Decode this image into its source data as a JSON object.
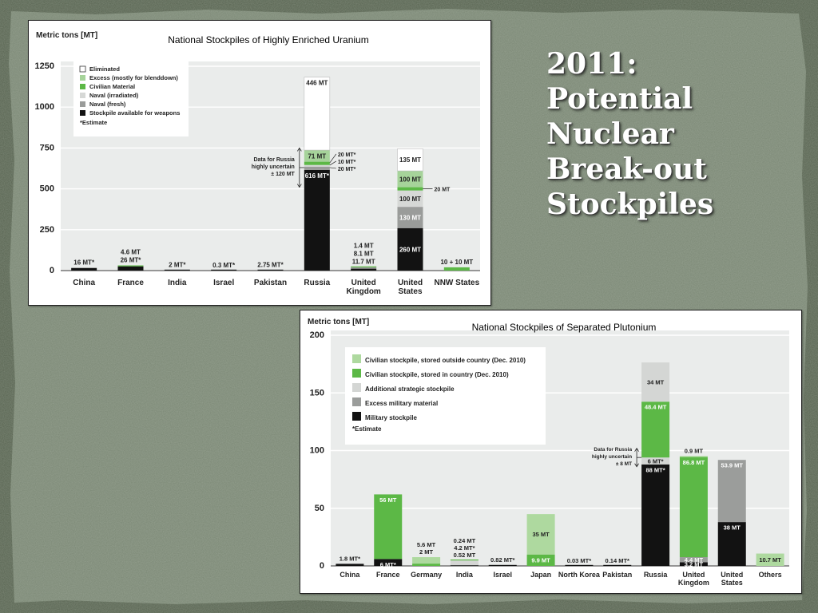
{
  "slide": {
    "title_lines": [
      "2011:",
      "Potential",
      "Nuclear",
      "Break-out",
      "Stockpiles"
    ]
  },
  "colors": {
    "eliminated": "#ffffff",
    "excess_blenddown": "#a6d39a",
    "civilian": "#5cb846",
    "naval_irradiated": "#d6d8d6",
    "naval_fresh": "#9a9c9a",
    "weapons": "#121212",
    "pu_outside": "#aed99f",
    "pu_in_country": "#5cb846",
    "pu_strategic": "#d4d6d4",
    "pu_excess_military": "#9b9d9b",
    "pu_military": "#121212",
    "plot_bg": "#eaeceb"
  },
  "chart_data": [
    {
      "type": "bar",
      "stacked": true,
      "title": "National Stockpiles of Highly Enriched Uranium",
      "ylabel": "Metric tons [MT]",
      "ylim": [
        0,
        1250
      ],
      "yticks": [
        0,
        250,
        500,
        750,
        1000,
        1250
      ],
      "grid": true,
      "legend_position": "top-left",
      "categories": [
        "China",
        "France",
        "India",
        "Israel",
        "Pakistan",
        "Russia",
        "United Kingdom",
        "United States",
        "NNW States"
      ],
      "category_lines": [
        [
          "China"
        ],
        [
          "France"
        ],
        [
          "India"
        ],
        [
          "Israel"
        ],
        [
          "Pakistan"
        ],
        [
          "Russia"
        ],
        [
          "United",
          "Kingdom"
        ],
        [
          "United",
          "States"
        ],
        [
          "NNW States"
        ]
      ],
      "legend": [
        {
          "key": "eliminated",
          "label": "Eliminated"
        },
        {
          "key": "excess_blenddown",
          "label": "Excess (mostly for blenddown)"
        },
        {
          "key": "civilian",
          "label": "Civilian Material"
        },
        {
          "key": "naval_irradiated",
          "label": "Naval (irradiated)"
        },
        {
          "key": "naval_fresh",
          "label": "Naval (fresh)"
        },
        {
          "key": "weapons",
          "label": "Stockpile available for weapons"
        }
      ],
      "legend_note": "*Estimate",
      "series": [
        {
          "name": "Stockpile available for weapons",
          "key": "weapons",
          "values": [
            16,
            26,
            2,
            0.3,
            2.75,
            616,
            11.7,
            260,
            0
          ]
        },
        {
          "name": "Naval (fresh)",
          "key": "naval_fresh",
          "values": [
            0,
            0,
            0,
            0,
            0,
            20,
            8.1,
            130,
            0
          ]
        },
        {
          "name": "Naval (irradiated)",
          "key": "naval_irradiated",
          "values": [
            0,
            0,
            0,
            0,
            0,
            10,
            0,
            100,
            0
          ]
        },
        {
          "name": "Civilian Material",
          "key": "civilian",
          "values": [
            0,
            4.6,
            0,
            0,
            0,
            20,
            1.4,
            20,
            20
          ]
        },
        {
          "name": "Excess (mostly for blenddown)",
          "key": "excess_blenddown",
          "values": [
            0,
            0,
            0,
            0,
            0,
            71,
            0,
            100,
            0
          ]
        },
        {
          "name": "Eliminated",
          "key": "eliminated",
          "values": [
            0,
            0,
            0,
            0,
            0,
            446,
            0,
            135,
            0
          ]
        }
      ],
      "annotations": [
        {
          "cat": 0,
          "lines": [
            "16 MT*"
          ]
        },
        {
          "cat": 1,
          "lines": [
            "4.6 MT",
            "26 MT*"
          ]
        },
        {
          "cat": 2,
          "lines": [
            "2 MT*"
          ]
        },
        {
          "cat": 3,
          "lines": [
            "0.3 MT*"
          ]
        },
        {
          "cat": 4,
          "lines": [
            "2.75 MT*"
          ]
        },
        {
          "cat": 6,
          "lines": [
            "1.4 MT",
            "8.1 MT",
            "11.7 MT"
          ]
        },
        {
          "cat": 8,
          "lines": [
            "10 + 10 MT"
          ]
        }
      ],
      "segment_labels": [
        {
          "cat": 5,
          "series": "Eliminated",
          "text": "446 MT",
          "where": "top"
        },
        {
          "cat": 5,
          "series": "Excess (mostly for blenddown)",
          "text": "71 MT"
        },
        {
          "cat": 5,
          "series": "Stockpile available for weapons",
          "text": "616 MT*",
          "where": "top"
        },
        {
          "cat": 7,
          "series": "Eliminated",
          "text": "135 MT"
        },
        {
          "cat": 7,
          "series": "Excess (mostly for blenddown)",
          "text": "100 MT"
        },
        {
          "cat": 7,
          "series": "Naval (irradiated)",
          "text": "100 MT"
        },
        {
          "cat": 7,
          "series": "Naval (fresh)",
          "text": "130 MT"
        },
        {
          "cat": 7,
          "series": "Stockpile available for weapons",
          "text": "260 MT"
        }
      ],
      "side_labels": [
        {
          "cat": 5,
          "texts": [
            "20 MT*",
            "10 MT*",
            "20 MT*"
          ]
        },
        {
          "cat": 7,
          "texts": [
            "20 MT"
          ]
        }
      ],
      "uncertainty_note": {
        "cat": 5,
        "lines": [
          "Data for Russia",
          "highly uncertain",
          "± 120 MT"
        ],
        "plus_minus": 120
      }
    },
    {
      "type": "bar",
      "stacked": true,
      "title": "National  Stockpiles of Separated Plutonium",
      "ylabel": "Metric tons [MT]",
      "ylim": [
        0,
        200
      ],
      "yticks": [
        0,
        50,
        100,
        150,
        200
      ],
      "grid": true,
      "legend_position": "top-left",
      "categories": [
        "China",
        "France",
        "Germany",
        "India",
        "Israel",
        "Japan",
        "North Korea",
        "Pakistan",
        "Russia",
        "United Kingdom",
        "United States",
        "Others"
      ],
      "category_lines": [
        [
          "China"
        ],
        [
          "France"
        ],
        [
          "Germany"
        ],
        [
          "India"
        ],
        [
          "Israel"
        ],
        [
          "Japan"
        ],
        [
          "North Korea"
        ],
        [
          "Pakistan"
        ],
        [
          "Russia"
        ],
        [
          "United",
          "Kingdom"
        ],
        [
          "United",
          "States"
        ],
        [
          "Others"
        ]
      ],
      "legend": [
        {
          "key": "pu_outside",
          "label": "Civilian stockpile, stored outside country (Dec. 2010)"
        },
        {
          "key": "pu_in_country",
          "label": "Civilian stockpile, stored in country (Dec. 2010)"
        },
        {
          "key": "pu_strategic",
          "label": "Additional strategic stockpile"
        },
        {
          "key": "pu_excess_military",
          "label": "Excess military material"
        },
        {
          "key": "pu_military",
          "label": "Military stockpile"
        }
      ],
      "legend_note": "*Estimate",
      "series": [
        {
          "name": "Military stockpile",
          "key": "pu_military",
          "values": [
            1.8,
            6,
            0,
            0.52,
            0.82,
            0,
            0.03,
            0.14,
            88,
            3.2,
            38,
            0
          ]
        },
        {
          "name": "Excess military material",
          "key": "pu_excess_military",
          "values": [
            0,
            0,
            0,
            0,
            0,
            0,
            0,
            0,
            0,
            4.4,
            53.9,
            0
          ]
        },
        {
          "name": "Additional strategic stockpile",
          "key": "pu_strategic",
          "values": [
            0,
            0,
            0,
            4.2,
            0,
            0,
            0,
            0,
            6,
            0,
            0,
            0
          ]
        },
        {
          "name": "Civilian stockpile, stored in country (Dec. 2010)",
          "key": "pu_in_country",
          "values": [
            0,
            56,
            2,
            0.24,
            0,
            9.9,
            0,
            0,
            48.4,
            86.8,
            0,
            0
          ]
        },
        {
          "name": "Civilian stockpile, stored outside country (Dec. 2010)",
          "key": "pu_outside",
          "values": [
            0,
            0,
            5.6,
            0,
            0,
            35,
            0,
            0,
            0,
            0.9,
            0,
            10.7
          ]
        },
        {
          "name": "Russia additional",
          "key": "pu_strategic",
          "values": [
            0,
            0,
            0,
            0,
            0,
            0,
            0,
            0,
            34,
            0,
            0,
            0
          ]
        }
      ],
      "annotations": [
        {
          "cat": 0,
          "lines": [
            "1.8 MT*"
          ]
        },
        {
          "cat": 2,
          "lines": [
            "5.6 MT",
            "2 MT"
          ]
        },
        {
          "cat": 3,
          "lines": [
            "0.24 MT",
            "4.2 MT*",
            "0.52 MT"
          ]
        },
        {
          "cat": 4,
          "lines": [
            "0.82 MT*"
          ]
        },
        {
          "cat": 6,
          "lines": [
            "0.03 MT*"
          ]
        },
        {
          "cat": 7,
          "lines": [
            "0.14 MT*"
          ]
        },
        {
          "cat": 9,
          "lines": [
            "0.9 MT"
          ]
        }
      ],
      "segment_labels": [
        {
          "cat": 1,
          "series": "Civilian stockpile, stored in country (Dec. 2010)",
          "text": "56 MT",
          "where": "top"
        },
        {
          "cat": 1,
          "series": "Military stockpile",
          "text": "6 MT*",
          "where": "top"
        },
        {
          "cat": 5,
          "series": "Civilian stockpile, stored outside country (Dec. 2010)",
          "text": "35 MT"
        },
        {
          "cat": 5,
          "series": "Civilian stockpile, stored in country (Dec. 2010)",
          "text": "9.9 MT"
        },
        {
          "cat": 8,
          "series": "Civilian stockpile, stored in country (Dec. 2010)",
          "text": "48.4 MT",
          "where": "top"
        },
        {
          "cat": 8,
          "series": "Russia additional",
          "text": "34 MT"
        },
        {
          "cat": 8,
          "series": "Additional strategic stockpile",
          "text": "6 MT*"
        },
        {
          "cat": 8,
          "series": "Military stockpile",
          "text": "88 MT*",
          "where": "top"
        },
        {
          "cat": 9,
          "series": "Civilian stockpile, stored in country (Dec. 2010)",
          "text": "86.8 MT",
          "where": "top"
        },
        {
          "cat": 9,
          "series": "Excess military material",
          "text": "4.4 MT"
        },
        {
          "cat": 9,
          "series": "Military stockpile",
          "text": "3.2 MT"
        },
        {
          "cat": 10,
          "series": "Excess military material",
          "text": "53.9 MT",
          "where": "top"
        },
        {
          "cat": 10,
          "series": "Military stockpile",
          "text": "38 MT",
          "where": "top"
        },
        {
          "cat": 11,
          "series": "Civilian stockpile, stored outside country (Dec. 2010)",
          "text": "10.7 MT"
        }
      ],
      "uncertainty_note": {
        "cat": 8,
        "lines": [
          "Data for Russia",
          "highly uncertain",
          "± 8 MT"
        ],
        "plus_minus": 8
      }
    }
  ]
}
